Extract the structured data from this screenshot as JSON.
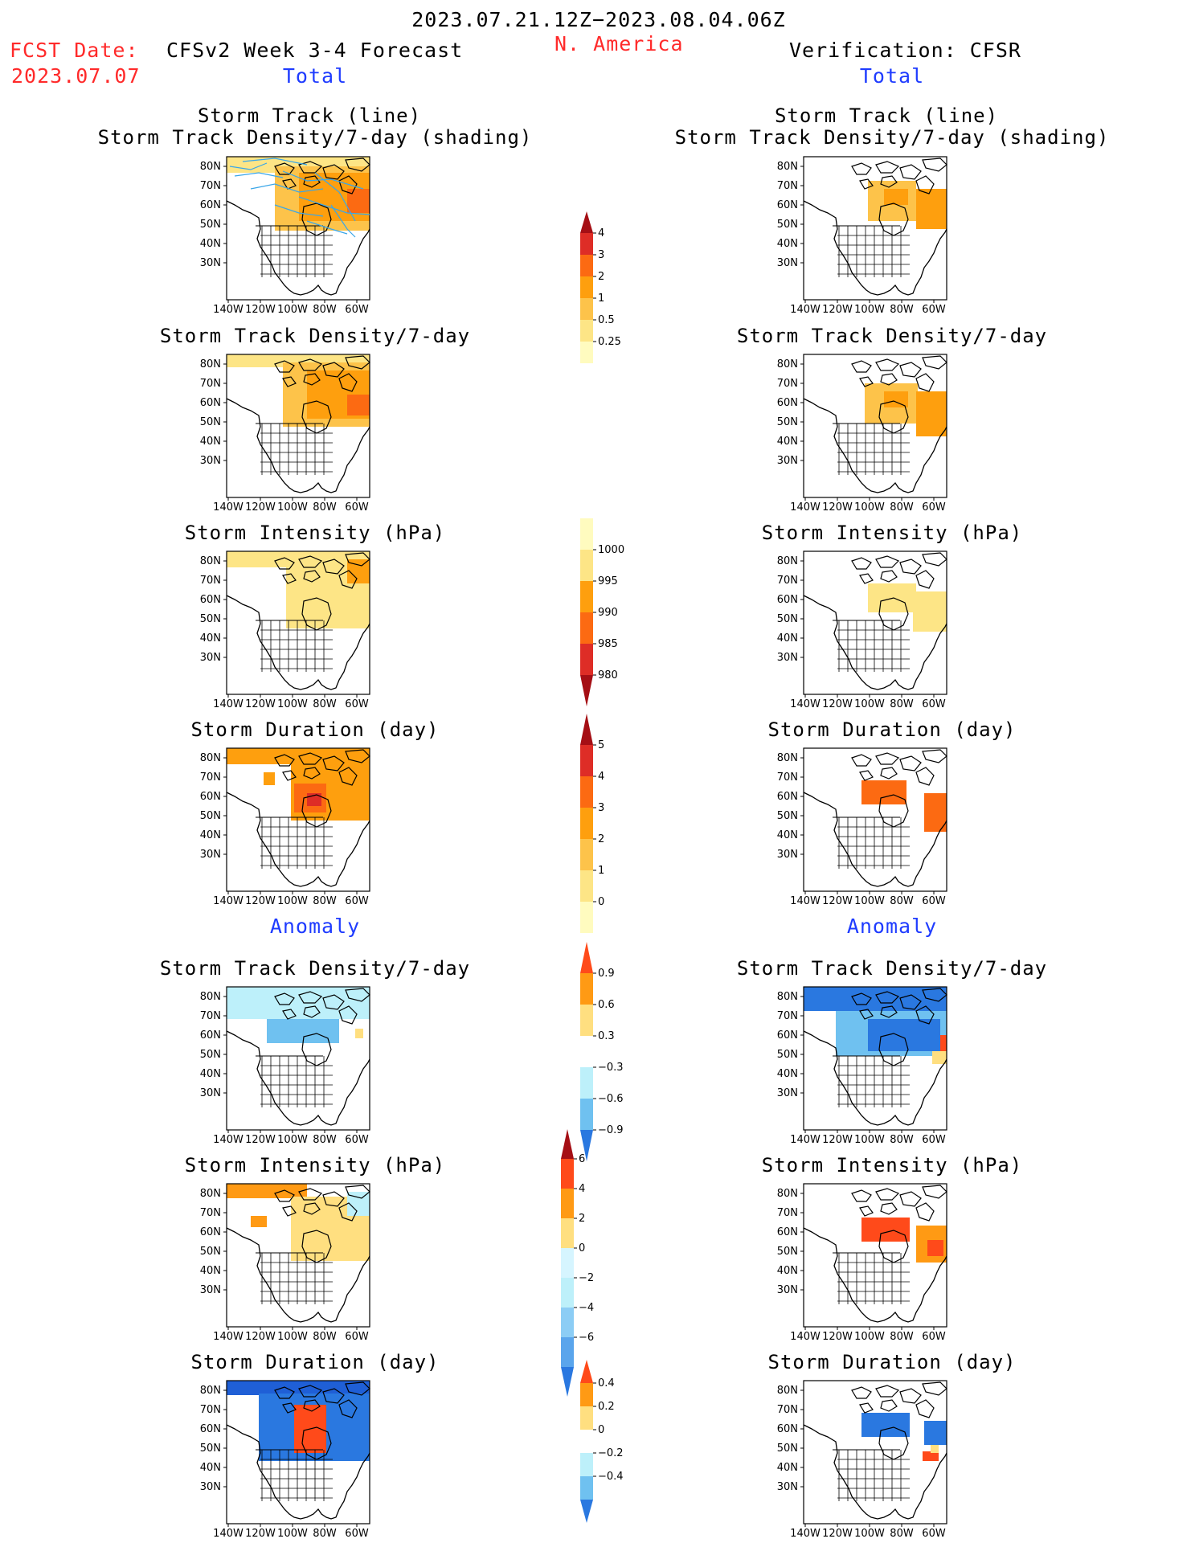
{
  "header": {
    "period": "2023.07.21.12Z−2023.08.04.06Z",
    "fcst_label": "FCST Date:",
    "fcst_date": "2023.07.07",
    "model": "CFSv2 Week 3-4 Forecast",
    "region": "N. America",
    "verification": "Verification: CFSR"
  },
  "sections": {
    "total": "Total",
    "anomaly": "Anomaly"
  },
  "panel_titles": {
    "storm_track_line": "Storm Track (line)",
    "storm_track_shading": "Storm Track Density/7-day (shading)",
    "density": "Storm Track Density/7-day",
    "intensity": "Storm Intensity (hPa)",
    "duration": "Storm Duration (day)"
  },
  "axes": {
    "lat_labels": [
      "80N",
      "70N",
      "60N",
      "50N",
      "40N",
      "30N"
    ],
    "lon_labels": [
      "140W",
      "120W",
      "100W",
      "80W",
      "60W"
    ]
  },
  "colorbars": {
    "density_total": {
      "labels": [
        "4",
        "3",
        "2",
        "1",
        "0.5",
        "0.25"
      ],
      "colors": [
        "#a50f15",
        "#de2d26",
        "#fc6a12",
        "#fe9f0e",
        "#fdc34a",
        "#fde586",
        "#fffbbf"
      ]
    },
    "intensity_total": {
      "labels": [
        "1000",
        "995",
        "990",
        "985",
        "980"
      ],
      "colors": [
        "#fffbbf",
        "#fde586",
        "#fe9f0e",
        "#fc6a12",
        "#de2d26",
        "#a50f15"
      ]
    },
    "duration_total": {
      "labels": [
        "5",
        "4",
        "3",
        "2",
        "1",
        "0"
      ],
      "colors": [
        "#a50f15",
        "#de2d26",
        "#fc6a12",
        "#fe9f0e",
        "#fdc34a",
        "#fde586",
        "#fffbbf"
      ]
    },
    "density_anom": {
      "labels": [
        "0.9",
        "0.6",
        "0.3",
        "−0.3",
        "−0.6",
        "−0.9"
      ],
      "colors": [
        "#ff4a1a",
        "#ff9a14",
        "#ffdf80",
        "#ffffff",
        "#bdf0fa",
        "#6fc1f0",
        "#2a78e0"
      ]
    },
    "intensity_anom": {
      "labels": [
        "6",
        "4",
        "2",
        "0",
        "−2",
        "−4",
        "−6"
      ],
      "colors": [
        "#a50f15",
        "#ff4a1a",
        "#ff9a14",
        "#ffdf80",
        "#d6f5ff",
        "#bdf0fa",
        "#8ccdf5",
        "#5aa5ec",
        "#2a78e0"
      ]
    },
    "duration_anom": {
      "labels": [
        "0.4",
        "0.2",
        "0",
        "−0.2",
        "−0.4"
      ],
      "colors": [
        "#ff4a1a",
        "#ff9a14",
        "#ffdf80",
        "#ffffff",
        "#bdf0fa",
        "#6fc1f0",
        "#2a78e0"
      ]
    }
  }
}
